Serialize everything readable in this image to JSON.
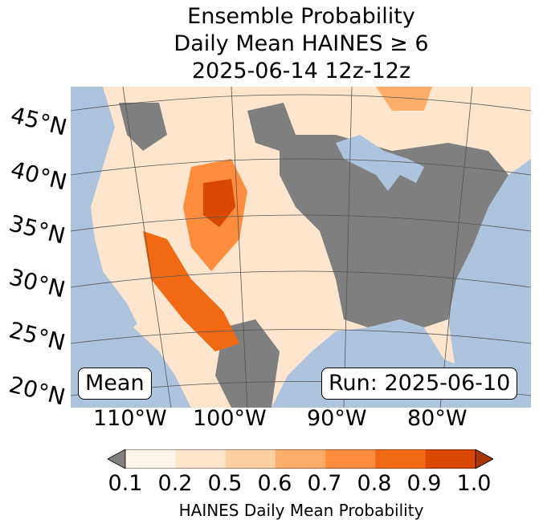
{
  "title": {
    "line1": "Ensemble Probability",
    "line2": "Daily Mean HAINES ≥ 6",
    "line3": "2025-06-14 12z-12z"
  },
  "labels": {
    "left_box": "Mean",
    "right_box": "Run: 2025-06-10"
  },
  "latitudes": [
    "45°N",
    "40°N",
    "35°N",
    "30°N",
    "25°N",
    "20°N"
  ],
  "longitudes": [
    "110°W",
    "100°W",
    "90°W",
    "80°W"
  ],
  "colorbar": {
    "ticks": [
      "0.1",
      "0.2",
      "0.5",
      "0.6",
      "0.7",
      "0.8",
      "0.9",
      "1.0"
    ],
    "colors": [
      "#fff5eb",
      "#fee6ce",
      "#fdd0a2",
      "#fdae6b",
      "#fd8d3c",
      "#f16913",
      "#d94801",
      "#a63603"
    ],
    "under_color": "#808080",
    "label": "HAINES Daily Mean Probability"
  },
  "colors": {
    "ocean": "#aec4de",
    "low": "#7f7f7f",
    "land_light": "#fee6ce"
  }
}
